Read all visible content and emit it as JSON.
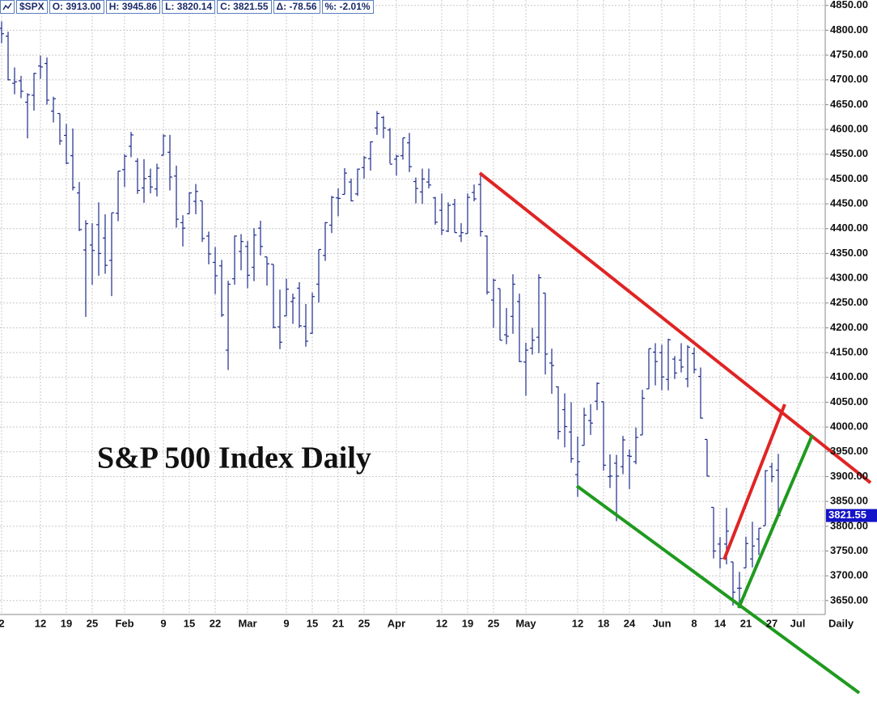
{
  "chart_data": {
    "type": "ohlc",
    "title": "S&P 500 Index Daily",
    "header": [
      "$SPX",
      "O: 3913.00",
      "H: 3945.86",
      "L: 3820.14",
      "C: 3821.55",
      "Δ: -78.56",
      "%: -2.01%"
    ],
    "period_label": "Daily",
    "last_price": 3821.55,
    "color": "#1c2a8a",
    "grid": true,
    "categories": [
      "2",
      null,
      null,
      null,
      null,
      null,
      "12",
      null,
      null,
      null,
      "19",
      null,
      null,
      null,
      "25",
      null,
      null,
      null,
      null,
      "Feb",
      null,
      null,
      null,
      null,
      null,
      "9",
      null,
      null,
      null,
      "15",
      null,
      null,
      null,
      "22",
      null,
      null,
      null,
      null,
      "Mar",
      null,
      null,
      null,
      null,
      null,
      "9",
      null,
      null,
      null,
      "15",
      null,
      null,
      null,
      "21",
      null,
      null,
      null,
      "25",
      null,
      null,
      null,
      null,
      "Apr",
      null,
      null,
      null,
      null,
      null,
      null,
      "12",
      null,
      null,
      null,
      "19",
      null,
      null,
      null,
      "25",
      null,
      null,
      null,
      null,
      "May",
      null,
      null,
      null,
      null,
      null,
      null,
      null,
      "12",
      null,
      null,
      null,
      "18",
      null,
      null,
      null,
      "24",
      null,
      null,
      null,
      null,
      "Jun",
      null,
      null,
      null,
      null,
      "8",
      null,
      null,
      null,
      "14",
      null,
      null,
      null,
      "21",
      null,
      null,
      null,
      "27",
      null,
      null,
      null,
      "Jul"
    ],
    "open": [
      4804,
      4788,
      4693,
      4698,
      4655,
      4669,
      4728,
      4733,
      4637,
      4632,
      4588,
      4547,
      4472,
      4357,
      4367,
      4408,
      4381,
      4336,
      4431,
      4519,
      4566,
      4536,
      4482,
      4505,
      4480,
      4548,
      4554,
      4506,
      4412,
      4430,
      4455,
      4456,
      4385,
      4332,
      4325,
      4155,
      4299,
      4354,
      4364,
      4322,
      4401,
      4343,
      4328,
      4202,
      4224,
      4253,
      4280,
      4203,
      4189,
      4288,
      4346,
      4407,
      4462,
      4469,
      4494,
      4470,
      4523,
      4541,
      4603,
      4624,
      4599,
      4540,
      4547,
      4573,
      4495,
      4474,
      4494,
      4462,
      4437,
      4395,
      4449,
      4385,
      4390,
      4473,
      4489,
      4385,
      4256,
      4279,
      4186,
      4223,
      4253,
      4131,
      4159,
      4181,
      4270,
      4129,
      4081,
      4035,
      3990,
      3904,
      3963,
      4013,
      4052,
      4051,
      3900,
      3927,
      3920,
      3942,
      3930,
      3984,
      4077,
      4151,
      4150,
      4096,
      4137,
      4135,
      4097,
      4148,
      4102,
      3975,
      3838,
      3764,
      3764,
      3728,
      3675,
      3716,
      3734,
      3774,
      3801,
      3920,
      3913,
      null,
      null,
      null
    ],
    "high": [
      4818,
      4797,
      4725,
      4708,
      4673,
      4714,
      4749,
      4745,
      4666,
      4632,
      4611,
      4602,
      4494,
      4417,
      4411,
      4453,
      4429,
      4432,
      4516,
      4550,
      4595,
      4542,
      4540,
      4521,
      4531,
      4590,
      4589,
      4527,
      4427,
      4473,
      4490,
      4456,
      4394,
      4363,
      4337,
      4295,
      4386,
      4389,
      4375,
      4401,
      4416,
      4343,
      4328,
      4277,
      4299,
      4269,
      4292,
      4248,
      4271,
      4358,
      4413,
      4466,
      4481,
      4522,
      4501,
      4521,
      4546,
      4576,
      4637,
      4627,
      4603,
      4549,
      4583,
      4593,
      4503,
      4521,
      4521,
      4464,
      4471,
      4453,
      4460,
      4411,
      4471,
      4489,
      4512,
      4386,
      4299,
      4279,
      4240,
      4308,
      4269,
      4170,
      4200,
      4308,
      4270,
      4158,
      4082,
      4068,
      4050,
      3981,
      4039,
      4046,
      4090,
      4051,
      3945,
      3944,
      3982,
      3955,
      3999,
      4075,
      4158,
      4169,
      4166,
      4178,
      4143,
      4169,
      4165,
      4160,
      4120,
      3975,
      3838,
      3778,
      3837,
      3728,
      3708,
      3779,
      3809,
      3796,
      3913,
      3928,
      3945.86,
      null,
      null,
      null
    ],
    "low": [
      4774,
      4699,
      4671,
      4663,
      4582,
      4638,
      4702,
      4650,
      4614,
      4569,
      4530,
      4477,
      4395,
      4222,
      4287,
      4305,
      4309,
      4264,
      4415,
      4484,
      4544,
      4470,
      4452,
      4471,
      4465,
      4548,
      4477,
      4402,
      4364,
      4430,
      4429,
      4373,
      4328,
      4268,
      4222,
      4115,
      4287,
      4316,
      4280,
      4294,
      4346,
      4285,
      4199,
      4157,
      4224,
      4208,
      4200,
      4162,
      4188,
      4251,
      4335,
      4391,
      4425,
      4469,
      4455,
      4466,
      4501,
      4517,
      4589,
      4582,
      4531,
      4507,
      4539,
      4514,
      4451,
      4450,
      4481,
      4408,
      4387,
      4393,
      4392,
      4373,
      4390,
      4455,
      4384,
      4267,
      4200,
      4175,
      4167,
      4188,
      4131,
      4063,
      4146,
      4149,
      4106,
      4067,
      3975,
      3959,
      3928,
      3859,
      3963,
      3984,
      4034,
      3912,
      3877,
      3810,
      3905,
      3875,
      3925,
      3984,
      4077,
      4084,
      4074,
      4074,
      4097,
      4110,
      4080,
      4108,
      4017,
      3901,
      3735,
      3715,
      3723,
      3640,
      3640,
      3716,
      3717,
      3742,
      3801,
      3889,
      3820.14,
      null,
      null,
      null
    ],
    "close": [
      4793,
      4700,
      4696,
      4677,
      4670,
      4713,
      4726,
      4659,
      4662,
      4577,
      4532,
      4483,
      4398,
      4410,
      4356,
      4350,
      4326,
      4432,
      4516,
      4546,
      4589,
      4477,
      4501,
      4484,
      4522,
      4587,
      4504,
      4419,
      4401,
      4472,
      4475,
      4380,
      4349,
      4305,
      4226,
      4288,
      4385,
      4374,
      4306,
      4387,
      4364,
      4329,
      4201,
      4171,
      4278,
      4260,
      4204,
      4173,
      4263,
      4358,
      4412,
      4463,
      4461,
      4512,
      4456,
      4520,
      4543,
      4575,
      4632,
      4603,
      4530,
      4546,
      4583,
      4525,
      4481,
      4500,
      4488,
      4413,
      4397,
      4447,
      4392,
      4392,
      4463,
      4460,
      4394,
      4272,
      4296,
      4175,
      4183,
      4288,
      4132,
      4155,
      4175,
      4301,
      4147,
      4124,
      3991,
      4001,
      3936,
      3930,
      4024,
      4008,
      4088,
      3923,
      3901,
      3901,
      3974,
      3941,
      3979,
      4058,
      4158,
      4132,
      4101,
      4176,
      4109,
      4121,
      4161,
      4116,
      4018,
      3901,
      3750,
      3735,
      3790,
      3667,
      3675,
      3765,
      3760,
      3796,
      3912,
      3900,
      3821.55,
      null,
      null,
      null
    ],
    "ylim": [
      3622,
      4861
    ],
    "yticks": [
      {
        "value": 3650,
        "label": "3650.00"
      },
      {
        "value": 3700,
        "label": "3700.00"
      },
      {
        "value": 3750,
        "label": "3750.00"
      },
      {
        "value": 3800,
        "label": "3800.00"
      },
      {
        "value": 3850,
        "label": "3850.00"
      },
      {
        "value": 3900,
        "label": "3900.00"
      },
      {
        "value": 3950,
        "label": "3950.00"
      },
      {
        "value": 4000,
        "label": "4000.00"
      },
      {
        "value": 4050,
        "label": "4050.00"
      },
      {
        "value": 4100,
        "label": "4100.00"
      },
      {
        "value": 4150,
        "label": "4150.00"
      },
      {
        "value": 4200,
        "label": "4200.00"
      },
      {
        "value": 4250,
        "label": "4250.00"
      },
      {
        "value": 4300,
        "label": "4300.00"
      },
      {
        "value": 4350,
        "label": "4350.00"
      },
      {
        "value": 4400,
        "label": "4400.00"
      },
      {
        "value": 4450,
        "label": "4450.00"
      },
      {
        "value": 4500,
        "label": "4500.00"
      },
      {
        "value": 4550,
        "label": "4550.00"
      },
      {
        "value": 4600,
        "label": "4600.00"
      },
      {
        "value": 4650,
        "label": "4650.00"
      },
      {
        "value": 4700,
        "label": "4700.00"
      },
      {
        "value": 4750,
        "label": "4750.00"
      },
      {
        "value": 4800,
        "label": "4800.00"
      },
      {
        "value": 4850,
        "label": "4850.00"
      }
    ]
  }
}
